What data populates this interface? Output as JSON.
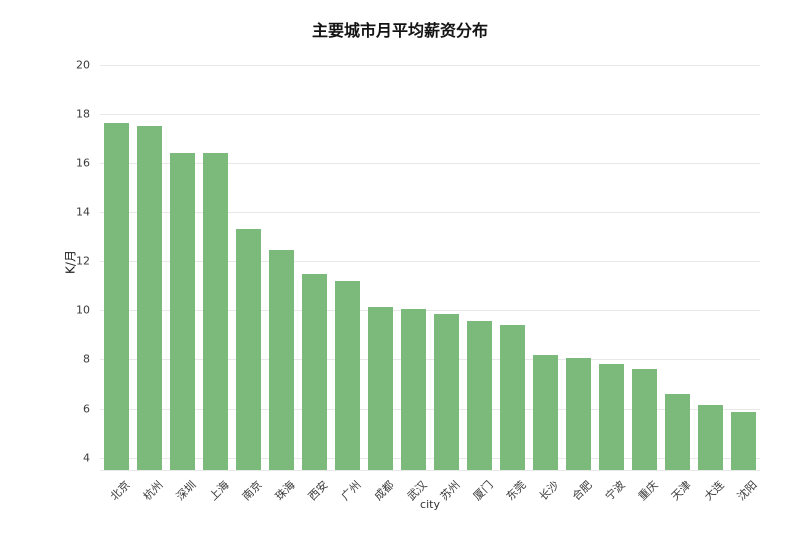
{
  "chart_data": {
    "type": "bar",
    "title": "主要城市月平均薪资分布",
    "xlabel": "city",
    "ylabel": "K/月",
    "categories": [
      "北京",
      "杭州",
      "深圳",
      "上海",
      "南京",
      "珠海",
      "西安",
      "广州",
      "成都",
      "武汉",
      "苏州",
      "厦门",
      "东莞",
      "长沙",
      "合肥",
      "宁波",
      "重庆",
      "天津",
      "大连",
      "沈阳"
    ],
    "values": [
      17.65,
      17.5,
      16.4,
      16.4,
      13.3,
      12.45,
      11.5,
      11.2,
      10.15,
      10.05,
      9.85,
      9.55,
      9.4,
      8.2,
      8.05,
      7.8,
      7.6,
      6.6,
      6.15,
      5.85
    ],
    "ylim": [
      3.5,
      20.4
    ],
    "yticks": [
      4,
      6,
      8,
      10,
      12,
      14,
      16,
      18,
      20
    ],
    "bar_color": "#7cba7c",
    "grid": true,
    "grid_color": "#e8e8e8",
    "background": "#ffffff",
    "legend": "none"
  }
}
